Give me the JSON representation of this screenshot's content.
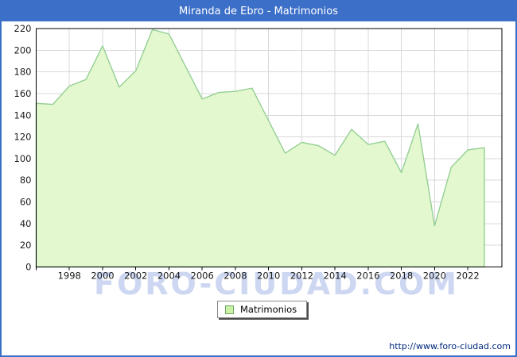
{
  "window": {
    "title": "Miranda de Ebro - Matrimonios"
  },
  "watermark": {
    "text": "FORO-CIUDAD.COM"
  },
  "legend": {
    "label": "Matrimonios"
  },
  "footer": {
    "url": "http://www.foro-ciudad.com"
  },
  "colors": {
    "titlebar_bg": "#3c6fc8",
    "titlebar_text": "#ffffff",
    "frame_border": "#3c6fc8",
    "area_fill": "#e3f8ce",
    "area_line": "#95cf95",
    "grid": "#d8d8d8",
    "axis": "#000000",
    "tick_label": "#1a1a1a",
    "watermark": "#cdd7f1",
    "legend_swatch": "#c9f2a7",
    "footer_text": "#002a80"
  },
  "chart_data": {
    "type": "area",
    "title": "Miranda de Ebro - Matrimonios",
    "x": [
      1996,
      1997,
      1998,
      1999,
      2000,
      2001,
      2002,
      2003,
      2004,
      2005,
      2006,
      2007,
      2008,
      2009,
      2010,
      2011,
      2012,
      2013,
      2014,
      2015,
      2016,
      2017,
      2018,
      2019,
      2020,
      2021,
      2022,
      2023
    ],
    "series": [
      {
        "name": "Matrimonios",
        "values": [
          151,
          150,
          167,
          173,
          204,
          166,
          181,
          219,
          215,
          185,
          155,
          161,
          162,
          165,
          135,
          105,
          115,
          112,
          103,
          127,
          113,
          116,
          87,
          132,
          38,
          92,
          108,
          110
        ]
      }
    ],
    "ylim": [
      0,
      220
    ],
    "yticks": [
      0,
      20,
      40,
      60,
      80,
      100,
      120,
      140,
      160,
      180,
      200,
      220
    ],
    "xticks": [
      1998,
      2000,
      2002,
      2004,
      2006,
      2008,
      2010,
      2012,
      2014,
      2016,
      2018,
      2020,
      2022
    ],
    "xticks_minor": [
      1996
    ],
    "grid": true,
    "legend_position": "bottom-center",
    "xlabel": "",
    "ylabel": ""
  }
}
